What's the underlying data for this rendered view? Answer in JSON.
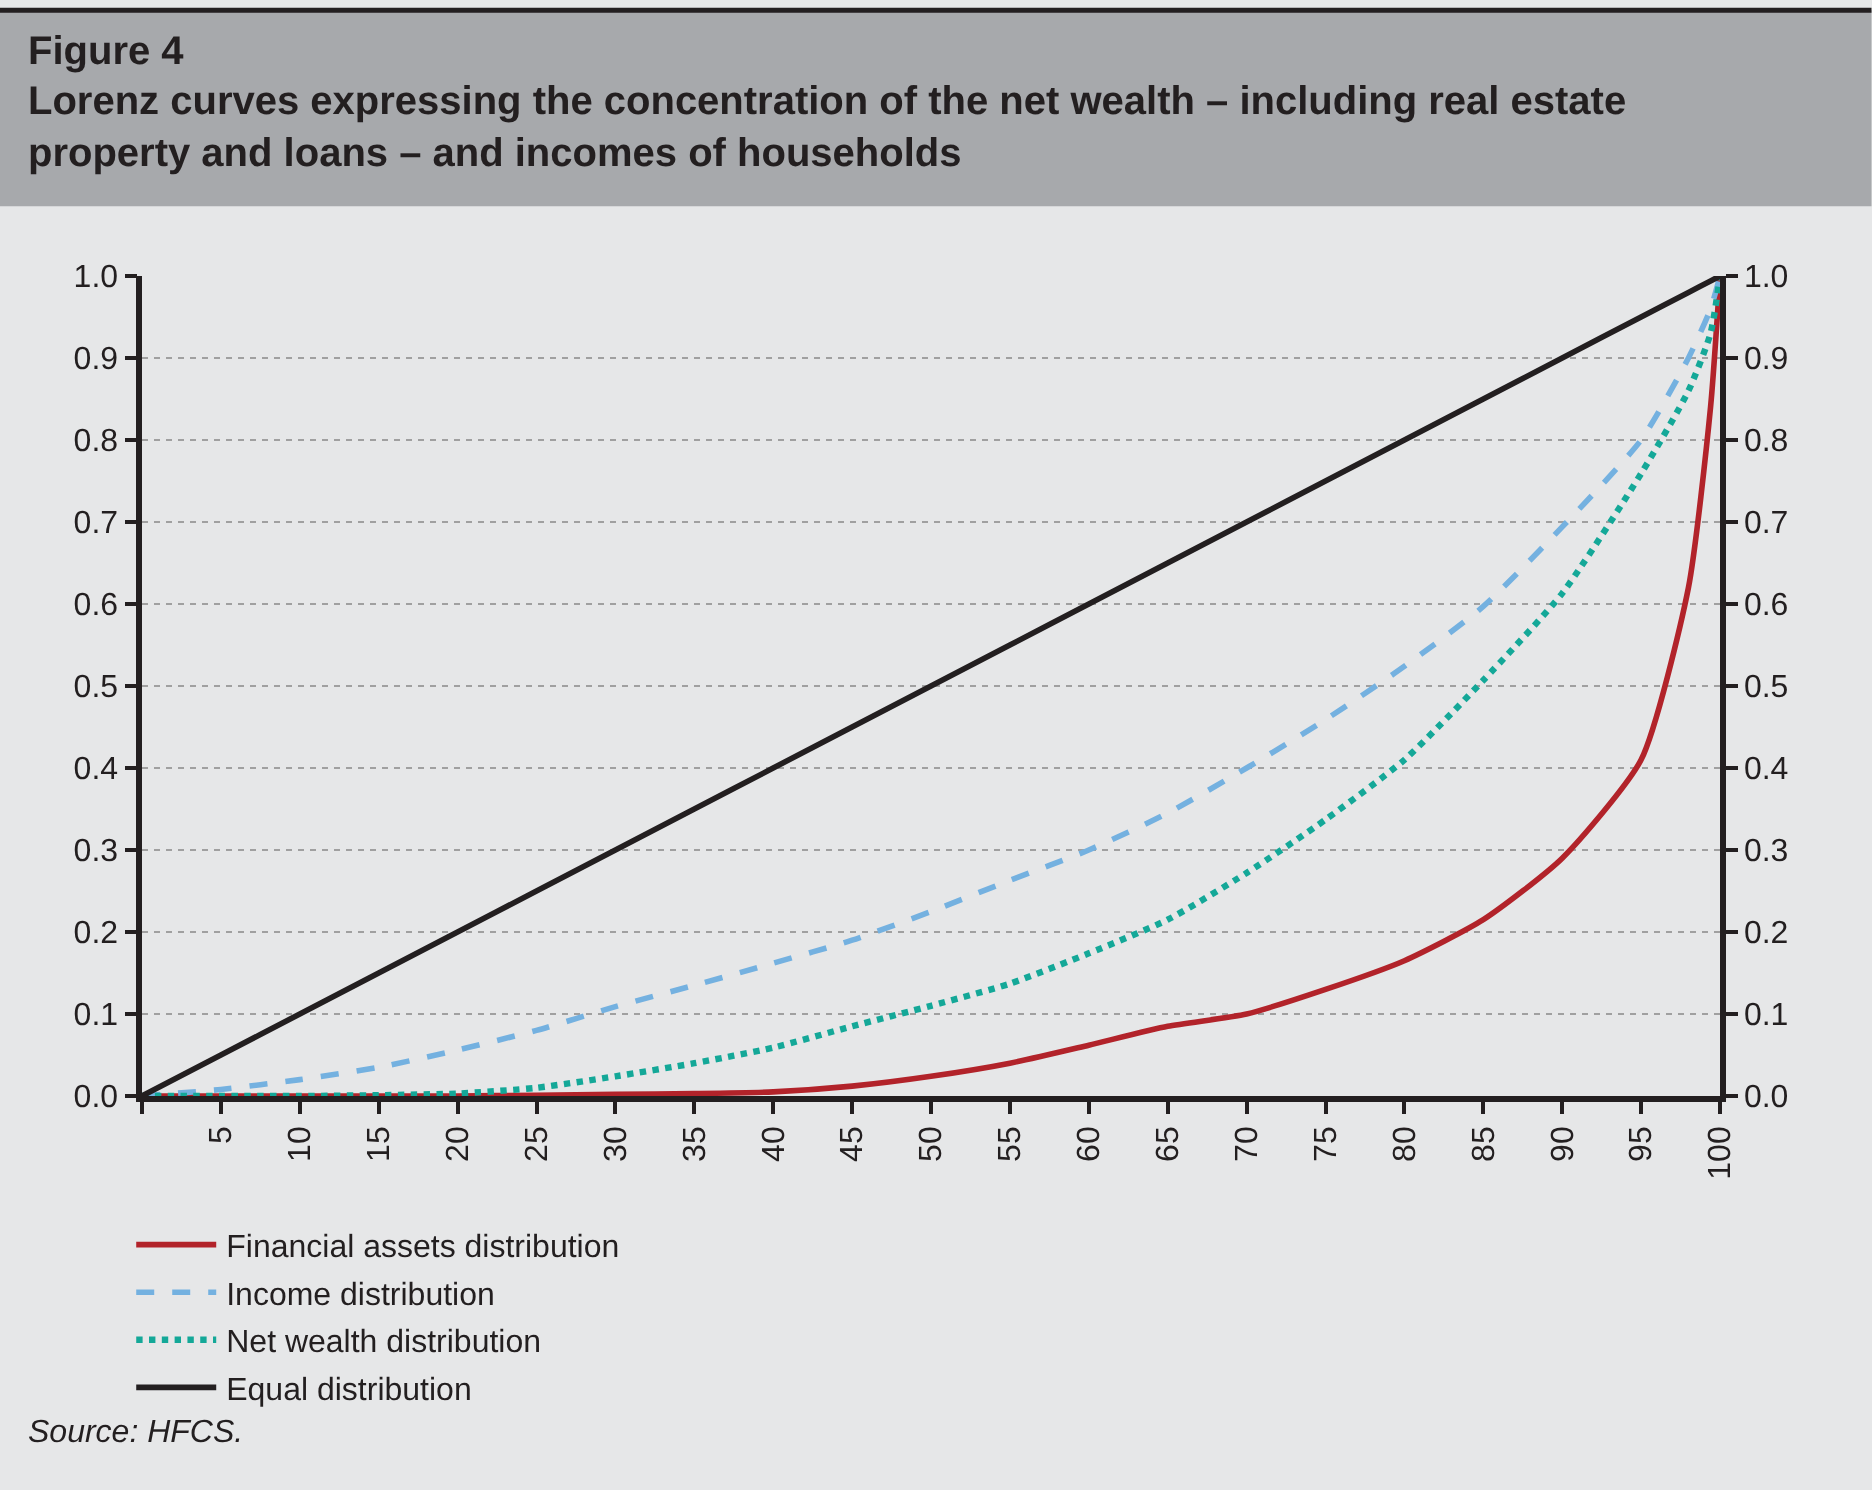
{
  "chart_data": {
    "type": "line",
    "title": "Figure 4",
    "subtitle": "Lorenz curves expressing the concentration of the net wealth – including real estate property and loans – and incomes of households",
    "x": [
      0,
      5,
      10,
      15,
      20,
      25,
      30,
      35,
      40,
      45,
      50,
      55,
      60,
      65,
      70,
      75,
      80,
      85,
      90,
      95,
      98,
      99.4,
      100
    ],
    "series": [
      {
        "name": "Financial assets distribution",
        "color": "#b2232a",
        "line_style": "solid",
        "values": [
          0,
          0,
          0,
          0,
          0,
          0.001,
          0.002,
          0.003,
          0.005,
          0.012,
          0.024,
          0.04,
          0.062,
          0.085,
          0.1,
          0.13,
          0.165,
          0.215,
          0.29,
          0.41,
          0.62,
          0.84,
          1.0
        ]
      },
      {
        "name": "Income distribution",
        "color": "#74b1e0",
        "line_style": "dashed",
        "values": [
          0,
          0.008,
          0.02,
          0.035,
          0.056,
          0.08,
          0.109,
          0.135,
          0.162,
          0.19,
          0.225,
          0.263,
          0.3,
          0.345,
          0.4,
          0.459,
          0.524,
          0.597,
          0.694,
          0.8,
          0.9,
          0.96,
          1.0
        ]
      },
      {
        "name": "Net wealth distribution",
        "color": "#14a898",
        "line_style": "dotted",
        "values": [
          0,
          0,
          0,
          0.001,
          0.003,
          0.01,
          0.024,
          0.04,
          0.059,
          0.085,
          0.11,
          0.137,
          0.174,
          0.215,
          0.272,
          0.337,
          0.41,
          0.507,
          0.613,
          0.759,
          0.86,
          0.93,
          1.0
        ]
      },
      {
        "name": "Equal distribution",
        "color": "#231f20",
        "line_style": "solid",
        "values": [
          0,
          0.05,
          0.1,
          0.15,
          0.2,
          0.25,
          0.3,
          0.35,
          0.4,
          0.45,
          0.5,
          0.55,
          0.6,
          0.65,
          0.7,
          0.75,
          0.8,
          0.85,
          0.9,
          0.95,
          0.98,
          0.994,
          1.0
        ]
      }
    ],
    "xlim": [
      0,
      100
    ],
    "xticks": [
      {
        "value": 0,
        "label": null
      },
      5,
      10,
      15,
      20,
      25,
      30,
      35,
      40,
      45,
      50,
      55,
      60,
      65,
      70,
      75,
      80,
      85,
      90,
      95,
      100
    ],
    "ylim": [
      0,
      1
    ],
    "yticks": [
      {
        "value": 0,
        "label": "0.0"
      },
      {
        "value": 0.1,
        "label": "0.1"
      },
      {
        "value": 0.2,
        "label": "0.2"
      },
      {
        "value": 0.3,
        "label": "0.3"
      },
      {
        "value": 0.4,
        "label": "0.4"
      },
      {
        "value": 0.5,
        "label": "0.5"
      },
      {
        "value": 0.6,
        "label": "0.6"
      },
      {
        "value": 0.7,
        "label": "0.7"
      },
      {
        "value": 0.8,
        "label": "0.8"
      },
      {
        "value": 0.9,
        "label": "0.9"
      },
      {
        "value": 1,
        "label": "1.0"
      }
    ],
    "y2lim": [
      0,
      1
    ],
    "y2ticks": [
      {
        "value": 0,
        "label": "0.0"
      },
      {
        "value": 0.1,
        "label": "0.1"
      },
      {
        "value": 0.2,
        "label": "0.2"
      },
      {
        "value": 0.3,
        "label": "0.3"
      },
      {
        "value": 0.4,
        "label": "0.4"
      },
      {
        "value": 0.5,
        "label": "0.5"
      },
      {
        "value": 0.6,
        "label": "0.6"
      },
      {
        "value": 0.7,
        "label": "0.7"
      },
      {
        "value": 0.8,
        "label": "0.8"
      },
      {
        "value": 0.9,
        "label": "0.9"
      },
      {
        "value": 1,
        "label": "1.0"
      }
    ],
    "grid": "y",
    "legend": "bottom left",
    "marker": "none",
    "annotations": [
      "Source: HFCS."
    ]
  }
}
